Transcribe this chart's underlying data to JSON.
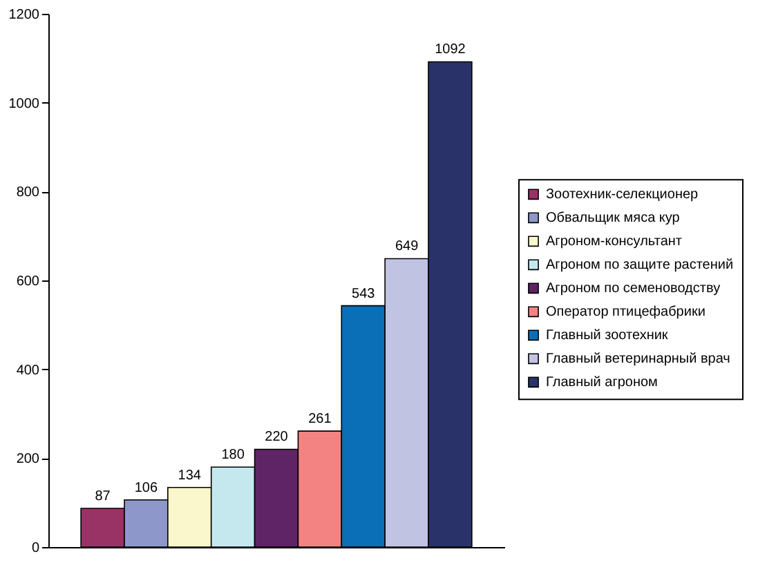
{
  "chart_data": {
    "type": "bar",
    "categories": [
      null
    ],
    "series": [
      {
        "name": "Зоотехник-селекционер",
        "color": "#993366",
        "values": [
          87
        ]
      },
      {
        "name": "Обвальщик мяса кур",
        "color": "#8e97c9",
        "values": [
          106
        ]
      },
      {
        "name": "Агроном-консультант",
        "color": "#fbf7cc",
        "values": [
          134
        ]
      },
      {
        "name": "Агроном по защите растений",
        "color": "#c5e8ef",
        "values": [
          180
        ]
      },
      {
        "name": "Агроном по семеноводству",
        "color": "#5f2466",
        "values": [
          220
        ]
      },
      {
        "name": "Оператор птицефабрики",
        "color": "#f38383",
        "values": [
          261
        ]
      },
      {
        "name": "Главный зоотехник",
        "color": "#0b6fb8",
        "values": [
          543
        ]
      },
      {
        "name": "Главный ветеринарный врач",
        "color": "#c1c3e3",
        "values": [
          649
        ]
      },
      {
        "name": "Главный агроном",
        "color": "#293369",
        "values": [
          1092
        ]
      }
    ],
    "ylim": [
      0,
      1200
    ],
    "yticks": [
      0,
      200,
      400,
      600,
      800,
      1000,
      1200
    ],
    "grid": false,
    "data_labels": true,
    "legend": "right",
    "tick_labels": "y"
  }
}
